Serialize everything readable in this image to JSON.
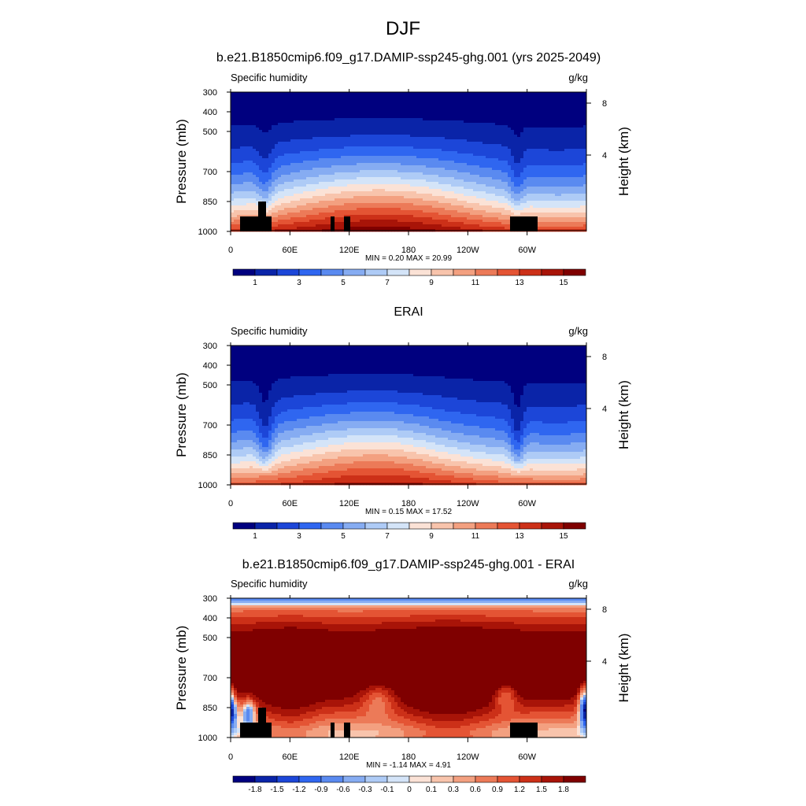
{
  "figure": {
    "title": "DJF"
  },
  "chart_data": [
    {
      "type": "heatmap",
      "title": "b.e21.B1850cmip6.f09_g17.DAMIP-ssp245-ghg.001 (yrs 2025-2049)",
      "left_label": "Specific humidity",
      "right_label": "g/kg",
      "ylabel": "Pressure (mb)",
      "y2label": "Height (km)",
      "y_ticks": [
        300,
        400,
        500,
        700,
        850,
        1000
      ],
      "y2_ticks": [
        8,
        4
      ],
      "x_ticks": [
        "0",
        "60E",
        "120E",
        "180",
        "120W",
        "60W"
      ],
      "xlim": [
        0,
        360
      ],
      "ylim": [
        1000,
        300
      ],
      "stats": "MIN =   0.20  MAX =  20.99",
      "colorbar": {
        "levels": [
          0,
          1,
          2,
          3,
          4,
          5,
          6,
          7,
          8,
          9,
          10,
          11,
          12,
          13,
          14,
          15,
          16
        ],
        "labels": [
          "1",
          "3",
          "5",
          "7",
          "9",
          "11",
          "13",
          "15"
        ],
        "colors": [
          "#00007f",
          "#0a24a8",
          "#1c46d8",
          "#2f66f0",
          "#5a8af0",
          "#86acf2",
          "#aecbf6",
          "#d4e4f8",
          "#fbe2d6",
          "#f8c4ac",
          "#f3a080",
          "#ec7a58",
          "#e45434",
          "#cc3018",
          "#a81408",
          "#7f0000"
        ]
      },
      "field_note": "moist boundary layer (~13-16 g/kg) decreasing to <1 g/kg near 300 mb; drier over 35E and 70W"
    },
    {
      "type": "heatmap",
      "title": "ERAI",
      "left_label": "Specific humidity",
      "right_label": "g/kg",
      "ylabel": "Pressure (mb)",
      "y2label": "Height (km)",
      "y_ticks": [
        300,
        400,
        500,
        700,
        850,
        1000
      ],
      "y2_ticks": [
        8,
        4
      ],
      "x_ticks": [
        "0",
        "60E",
        "120E",
        "180",
        "120W",
        "60W"
      ],
      "xlim": [
        0,
        360
      ],
      "ylim": [
        1000,
        300
      ],
      "stats": "MIN =   0.15  MAX =  17.52",
      "colorbar": {
        "levels": [
          0,
          1,
          2,
          3,
          4,
          5,
          6,
          7,
          8,
          9,
          10,
          11,
          12,
          13,
          14,
          15,
          16
        ],
        "labels": [
          "1",
          "3",
          "5",
          "7",
          "9",
          "11",
          "13",
          "15"
        ],
        "colors": [
          "#00007f",
          "#0a24a8",
          "#1c46d8",
          "#2f66f0",
          "#5a8af0",
          "#86acf2",
          "#aecbf6",
          "#d4e4f8",
          "#fbe2d6",
          "#f8c4ac",
          "#f3a080",
          "#ec7a58",
          "#e45434",
          "#cc3018",
          "#a81408",
          "#7f0000"
        ]
      }
    },
    {
      "type": "heatmap",
      "title": "b.e21.B1850cmip6.f09_g17.DAMIP-ssp245-ghg.001 - ERAI",
      "left_label": "Specific humidity",
      "right_label": "g/kg",
      "ylabel": "Pressure (mb)",
      "y2label": "Height (km)",
      "y_ticks": [
        300,
        400,
        500,
        700,
        850,
        1000
      ],
      "y2_ticks": [
        8,
        4
      ],
      "x_ticks": [
        "0",
        "60E",
        "120E",
        "180",
        "120W",
        "60W"
      ],
      "xlim": [
        0,
        360
      ],
      "ylim": [
        1000,
        300
      ],
      "stats": "MIN =  -1.14  MAX =   4.91",
      "colorbar": {
        "levels": [
          -2.1,
          -1.8,
          -1.5,
          -1.2,
          -0.9,
          -0.6,
          -0.3,
          -0.1,
          0,
          0.1,
          0.3,
          0.6,
          0.9,
          1.2,
          1.5,
          1.8,
          2.1
        ],
        "labels": [
          "-1.8",
          "-1.5",
          "-1.2",
          "-0.9",
          "-0.6",
          "-0.3",
          "-0.1",
          "0",
          "0.1",
          "0.3",
          "0.6",
          "0.9",
          "1.2",
          "1.5",
          "1.8"
        ],
        "colors": [
          "#00007f",
          "#0a24a8",
          "#1c46d8",
          "#2f66f0",
          "#5a8af0",
          "#86acf2",
          "#aecbf6",
          "#d4e4f8",
          "#fbe2d6",
          "#f8c4ac",
          "#f3a080",
          "#ec7a58",
          "#e45434",
          "#cc3018",
          "#a81408",
          "#7f0000"
        ]
      }
    }
  ]
}
